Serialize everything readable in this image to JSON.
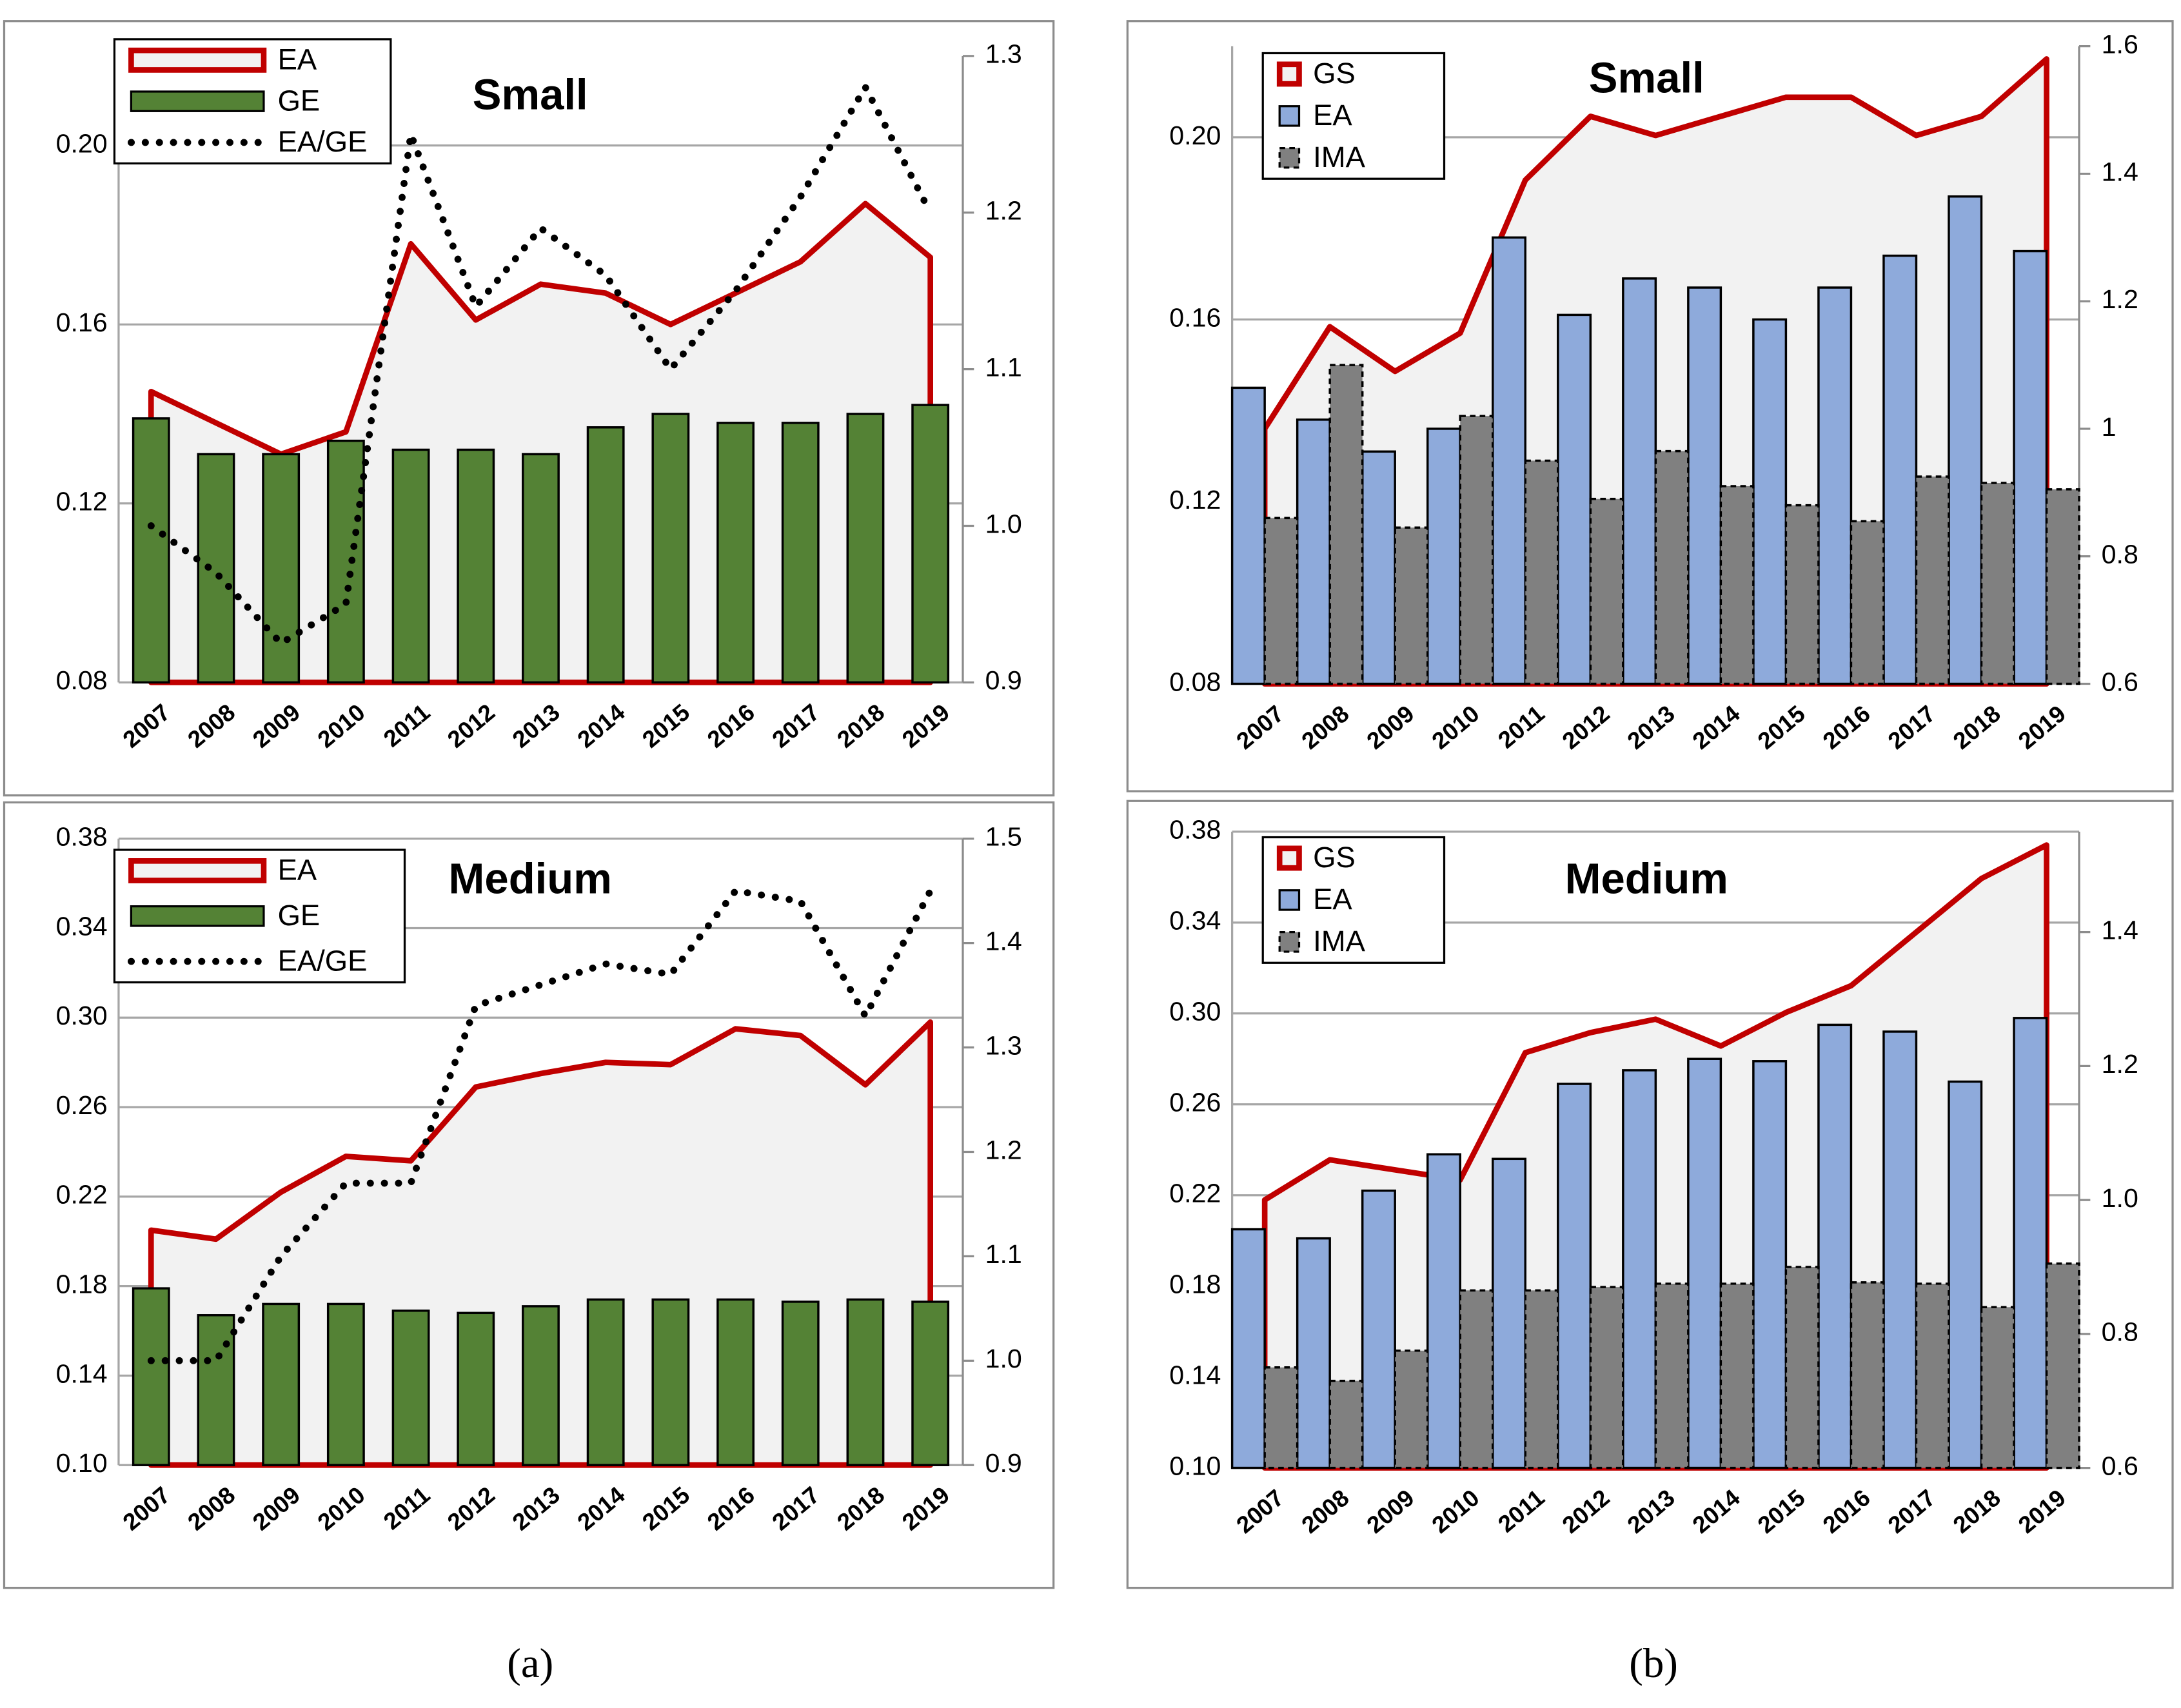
{
  "panel_labels": [
    "(a)",
    "(b)"
  ],
  "chart_data": [
    {
      "type": "bar",
      "title": "Small",
      "categories": [
        "2007",
        "2008",
        "2009",
        "2010",
        "2011",
        "2012",
        "2013",
        "2014",
        "2015",
        "2016",
        "2017",
        "2018",
        "2019"
      ],
      "ylim": [
        0.08,
        0.22
      ],
      "yticks": [
        0.08,
        0.12,
        0.16,
        {
          "value": 0.2,
          "label": "0.20"
        }
      ],
      "y2lim": [
        0.9,
        1.3
      ],
      "y2ticks": [
        0.9,
        {
          "value": 1,
          "label": "1.0"
        },
        1.1,
        1.2,
        1.3
      ],
      "grid": true,
      "legend": "upper left",
      "series": [
        {
          "name": "EA",
          "kind": "area",
          "color": "#c00000",
          "values": [
            0.145,
            0.138,
            0.131,
            0.136,
            0.178,
            0.161,
            0.169,
            0.167,
            0.16,
            0.167,
            0.174,
            0.187,
            0.175
          ]
        },
        {
          "name": "GE",
          "kind": "bar",
          "color": "#548235",
          "values": [
            0.139,
            0.131,
            0.131,
            0.134,
            0.132,
            0.132,
            0.131,
            0.137,
            0.14,
            0.138,
            0.138,
            0.14,
            0.142
          ]
        },
        {
          "name": "EA/GE",
          "kind": "line",
          "style": "dotted",
          "axis": "y2",
          "color": "#000000",
          "values": [
            1.0,
            0.97,
            0.925,
            0.95,
            1.25,
            1.14,
            1.19,
            1.16,
            1.1,
            1.15,
            1.21,
            1.28,
            1.2
          ]
        }
      ]
    },
    {
      "type": "bar",
      "title": "Medium",
      "categories": [
        "2007",
        "2008",
        "2009",
        "2010",
        "2011",
        "2012",
        "2013",
        "2014",
        "2015",
        "2016",
        "2017",
        "2018",
        "2019"
      ],
      "ylim": [
        0.1,
        0.38
      ],
      "yticks": [
        {
          "value": 0.1,
          "label": "0.10"
        },
        0.14,
        0.18,
        0.22,
        0.26,
        {
          "value": 0.3,
          "label": "0.30"
        },
        0.34,
        0.38
      ],
      "y2lim": [
        0.9,
        1.5
      ],
      "y2ticks": [
        0.9,
        {
          "value": 1,
          "label": "1.0"
        },
        1.1,
        1.2,
        1.3,
        1.4,
        1.5
      ],
      "grid": true,
      "legend": "upper left",
      "series": [
        {
          "name": "EA",
          "kind": "area",
          "color": "#c00000",
          "values": [
            0.205,
            0.201,
            0.222,
            0.238,
            0.236,
            0.269,
            0.275,
            0.28,
            0.279,
            0.295,
            0.292,
            0.27,
            0.298
          ]
        },
        {
          "name": "GE",
          "kind": "bar",
          "color": "#548235",
          "values": [
            0.179,
            0.167,
            0.172,
            0.172,
            0.169,
            0.168,
            0.171,
            0.174,
            0.174,
            0.174,
            0.173,
            0.174,
            0.173
          ]
        },
        {
          "name": "EA/GE",
          "kind": "line",
          "style": "dotted",
          "axis": "y2",
          "color": "#000000",
          "values": [
            1.0,
            1.0,
            1.1,
            1.17,
            1.17,
            1.34,
            1.36,
            1.38,
            1.37,
            1.45,
            1.44,
            1.33,
            1.45
          ]
        }
      ]
    },
    {
      "type": "bar",
      "title": "Small",
      "categories": [
        "2007",
        "2008",
        "2009",
        "2010",
        "2011",
        "2012",
        "2013",
        "2014",
        "2015",
        "2016",
        "2017",
        "2018",
        "2019"
      ],
      "ylim": [
        0.08,
        0.22
      ],
      "yticks": [
        0.08,
        0.12,
        0.16,
        {
          "value": 0.2,
          "label": "0.20"
        }
      ],
      "y2lim": [
        0.6,
        1.6
      ],
      "y2ticks": [
        0.6,
        0.8,
        1,
        1.2,
        1.4,
        1.6
      ],
      "grid": true,
      "legend": "upper left",
      "series": [
        {
          "name": "GS",
          "kind": "area",
          "axis": "y2",
          "color": "#c00000",
          "values": [
            1.0,
            1.16,
            1.09,
            1.15,
            1.39,
            1.49,
            1.46,
            1.49,
            1.52,
            1.52,
            1.46,
            1.49,
            1.58
          ]
        },
        {
          "name": "EA",
          "kind": "bar",
          "color": "#8eaadb",
          "values": [
            0.145,
            0.138,
            0.131,
            0.136,
            0.178,
            0.161,
            0.169,
            0.167,
            0.16,
            0.167,
            0.174,
            0.187,
            0.175
          ]
        },
        {
          "name": "IMA",
          "kind": "bar",
          "style": "dashed",
          "axis": "y2",
          "color": "#808080",
          "values": [
            0.86,
            1.1,
            0.845,
            1.02,
            0.95,
            0.89,
            0.965,
            0.91,
            0.88,
            0.855,
            0.925,
            0.915,
            0.905
          ]
        }
      ]
    },
    {
      "type": "bar",
      "title": "Medium",
      "categories": [
        "2007",
        "2008",
        "2009",
        "2010",
        "2011",
        "2012",
        "2013",
        "2014",
        "2015",
        "2016",
        "2017",
        "2018",
        "2019"
      ],
      "ylim": [
        0.1,
        0.38
      ],
      "yticks": [
        {
          "value": 0.1,
          "label": "0.10"
        },
        0.14,
        0.18,
        0.22,
        0.26,
        {
          "value": 0.3,
          "label": "0.30"
        },
        0.34,
        0.38
      ],
      "y2lim": [
        0.6,
        1.55
      ],
      "y2ticks": [
        0.6,
        0.8,
        {
          "value": 1,
          "label": "1.0"
        },
        1.2,
        1.4
      ],
      "grid": true,
      "legend": "upper left",
      "series": [
        {
          "name": "GS",
          "kind": "area",
          "axis": "y2",
          "color": "#c00000",
          "values": [
            1.0,
            1.06,
            1.045,
            1.03,
            1.22,
            1.25,
            1.27,
            1.23,
            1.28,
            1.32,
            1.4,
            1.48,
            1.53
          ]
        },
        {
          "name": "EA",
          "kind": "bar",
          "color": "#8eaadb",
          "values": [
            0.205,
            0.201,
            0.222,
            0.238,
            0.236,
            0.269,
            0.275,
            0.28,
            0.279,
            0.295,
            0.292,
            0.27,
            0.298
          ]
        },
        {
          "name": "IMA",
          "kind": "bar",
          "style": "dashed",
          "axis": "y2",
          "color": "#808080",
          "values": [
            0.75,
            0.73,
            0.775,
            0.865,
            0.865,
            0.87,
            0.875,
            0.875,
            0.9,
            0.877,
            0.875,
            0.84,
            0.905
          ]
        }
      ]
    }
  ]
}
